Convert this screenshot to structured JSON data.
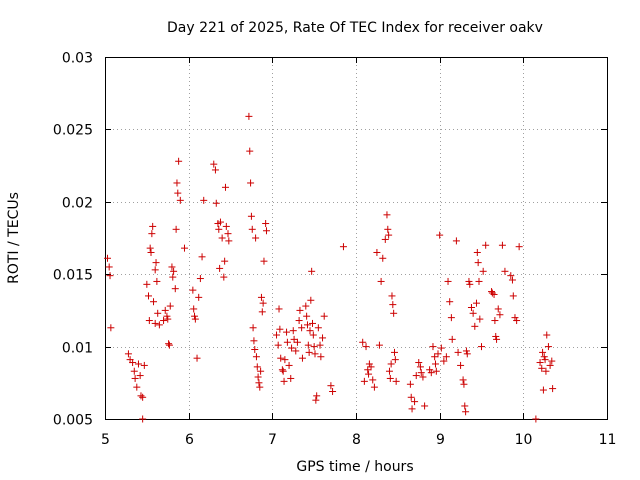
{
  "chart_data": {
    "type": "scatter",
    "title": "Day 221 of 2025, Rate Of TEC Index for receiver oakv",
    "xlabel": "GPS time / hours",
    "ylabel": "ROTI / TECUs",
    "xlim": [
      5,
      11
    ],
    "ylim": [
      0.005,
      0.03
    ],
    "xticks": [
      5,
      6,
      7,
      8,
      9,
      10,
      11
    ],
    "xtick_labels": [
      "5",
      "6",
      "7",
      "8",
      "9",
      "10",
      "11"
    ],
    "yticks": [
      0.005,
      0.01,
      0.015,
      0.02,
      0.025,
      0.03
    ],
    "ytick_labels": [
      "0.005",
      "0.01",
      "0.015",
      "0.02",
      "0.025",
      "0.03"
    ],
    "grid": true,
    "marker": "+",
    "marker_color": "#cc0000",
    "series": [
      {
        "name": "ROTI",
        "points": [
          [
            5.03,
            0.0161
          ],
          [
            5.05,
            0.0155
          ],
          [
            5.06,
            0.0149
          ],
          [
            5.07,
            0.0113
          ],
          [
            5.28,
            0.0095
          ],
          [
            5.3,
            0.0091
          ],
          [
            5.33,
            0.0089
          ],
          [
            5.35,
            0.0083
          ],
          [
            5.36,
            0.0078
          ],
          [
            5.38,
            0.0072
          ],
          [
            5.4,
            0.0088
          ],
          [
            5.42,
            0.008
          ],
          [
            5.43,
            0.0066
          ],
          [
            5.45,
            0.0065
          ],
          [
            5.47,
            0.0087
          ],
          [
            5.45,
            0.005
          ],
          [
            5.5,
            0.0143
          ],
          [
            5.52,
            0.0135
          ],
          [
            5.53,
            0.0118
          ],
          [
            5.54,
            0.0168
          ],
          [
            5.55,
            0.0165
          ],
          [
            5.56,
            0.0178
          ],
          [
            5.57,
            0.0183
          ],
          [
            5.58,
            0.0131
          ],
          [
            5.6,
            0.0153
          ],
          [
            5.61,
            0.0158
          ],
          [
            5.62,
            0.0145
          ],
          [
            5.6,
            0.0116
          ],
          [
            5.63,
            0.0123
          ],
          [
            5.65,
            0.0115
          ],
          [
            5.7,
            0.0118
          ],
          [
            5.72,
            0.0125
          ],
          [
            5.74,
            0.0121
          ],
          [
            5.75,
            0.0119
          ],
          [
            5.76,
            0.0102
          ],
          [
            5.77,
            0.0101
          ],
          [
            5.78,
            0.0128
          ],
          [
            5.8,
            0.0155
          ],
          [
            5.81,
            0.0148
          ],
          [
            5.82,
            0.0152
          ],
          [
            5.84,
            0.014
          ],
          [
            5.85,
            0.0181
          ],
          [
            5.86,
            0.0213
          ],
          [
            5.87,
            0.0206
          ],
          [
            5.88,
            0.0228
          ],
          [
            5.9,
            0.0201
          ],
          [
            5.95,
            0.0168
          ],
          [
            6.05,
            0.0139
          ],
          [
            6.06,
            0.0126
          ],
          [
            6.07,
            0.0121
          ],
          [
            6.08,
            0.0119
          ],
          [
            6.1,
            0.0092
          ],
          [
            6.12,
            0.0134
          ],
          [
            6.14,
            0.0147
          ],
          [
            6.16,
            0.0162
          ],
          [
            6.18,
            0.0201
          ],
          [
            6.3,
            0.0226
          ],
          [
            6.32,
            0.0222
          ],
          [
            6.33,
            0.0199
          ],
          [
            6.35,
            0.0185
          ],
          [
            6.36,
            0.0181
          ],
          [
            6.37,
            0.0154
          ],
          [
            6.38,
            0.0186
          ],
          [
            6.4,
            0.0175
          ],
          [
            6.42,
            0.0148
          ],
          [
            6.43,
            0.0159
          ],
          [
            6.44,
            0.021
          ],
          [
            6.45,
            0.0183
          ],
          [
            6.47,
            0.0178
          ],
          [
            6.48,
            0.0173
          ],
          [
            6.72,
            0.0259
          ],
          [
            6.73,
            0.0235
          ],
          [
            6.74,
            0.0213
          ],
          [
            6.75,
            0.019
          ],
          [
            6.76,
            0.0181
          ],
          [
            6.77,
            0.0113
          ],
          [
            6.78,
            0.0104
          ],
          [
            6.79,
            0.0098
          ],
          [
            6.8,
            0.0175
          ],
          [
            6.81,
            0.0093
          ],
          [
            6.82,
            0.0086
          ],
          [
            6.83,
            0.0079
          ],
          [
            6.84,
            0.0075
          ],
          [
            6.85,
            0.0072
          ],
          [
            6.86,
            0.0083
          ],
          [
            6.87,
            0.0134
          ],
          [
            6.88,
            0.0124
          ],
          [
            6.89,
            0.013
          ],
          [
            6.9,
            0.0159
          ],
          [
            6.92,
            0.0185
          ],
          [
            6.93,
            0.018
          ],
          [
            7.05,
            0.0108
          ],
          [
            7.07,
            0.0101
          ],
          [
            7.08,
            0.0126
          ],
          [
            7.09,
            0.0112
          ],
          [
            7.1,
            0.0092
          ],
          [
            7.12,
            0.0084
          ],
          [
            7.13,
            0.0083
          ],
          [
            7.14,
            0.0076
          ],
          [
            7.15,
            0.0091
          ],
          [
            7.17,
            0.011
          ],
          [
            7.18,
            0.0103
          ],
          [
            7.2,
            0.0087
          ],
          [
            7.22,
            0.0078
          ],
          [
            7.23,
            0.0099
          ],
          [
            7.25,
            0.0111
          ],
          [
            7.26,
            0.0105
          ],
          [
            7.28,
            0.0097
          ],
          [
            7.3,
            0.0103
          ],
          [
            7.32,
            0.0118
          ],
          [
            7.33,
            0.0125
          ],
          [
            7.35,
            0.0113
          ],
          [
            7.36,
            0.0092
          ],
          [
            7.4,
            0.0128
          ],
          [
            7.41,
            0.0121
          ],
          [
            7.42,
            0.0115
          ],
          [
            7.43,
            0.0101
          ],
          [
            7.44,
            0.0096
          ],
          [
            7.45,
            0.0111
          ],
          [
            7.46,
            0.0132
          ],
          [
            7.47,
            0.0152
          ],
          [
            7.48,
            0.0116
          ],
          [
            7.49,
            0.0108
          ],
          [
            7.5,
            0.01
          ],
          [
            7.51,
            0.0095
          ],
          [
            7.52,
            0.0063
          ],
          [
            7.53,
            0.0066
          ],
          [
            7.55,
            0.0113
          ],
          [
            7.57,
            0.0101
          ],
          [
            7.58,
            0.0093
          ],
          [
            7.6,
            0.0106
          ],
          [
            7.62,
            0.0121
          ],
          [
            7.7,
            0.0073
          ],
          [
            7.72,
            0.0069
          ],
          [
            7.85,
            0.0169
          ],
          [
            8.08,
            0.0103
          ],
          [
            8.1,
            0.0076
          ],
          [
            8.12,
            0.01
          ],
          [
            8.14,
            0.0084
          ],
          [
            8.15,
            0.0081
          ],
          [
            8.16,
            0.0088
          ],
          [
            8.18,
            0.0086
          ],
          [
            8.2,
            0.0077
          ],
          [
            8.22,
            0.0072
          ],
          [
            8.25,
            0.0165
          ],
          [
            8.28,
            0.0101
          ],
          [
            8.3,
            0.0145
          ],
          [
            8.32,
            0.0161
          ],
          [
            8.35,
            0.0174
          ],
          [
            8.37,
            0.0191
          ],
          [
            8.38,
            0.0181
          ],
          [
            8.39,
            0.0177
          ],
          [
            8.4,
            0.0083
          ],
          [
            8.41,
            0.0078
          ],
          [
            8.42,
            0.0088
          ],
          [
            8.43,
            0.0135
          ],
          [
            8.44,
            0.0129
          ],
          [
            8.45,
            0.0123
          ],
          [
            8.46,
            0.0096
          ],
          [
            8.47,
            0.0091
          ],
          [
            8.48,
            0.0076
          ],
          [
            8.65,
            0.0074
          ],
          [
            8.66,
            0.0065
          ],
          [
            8.67,
            0.0057
          ],
          [
            8.7,
            0.0062
          ],
          [
            8.72,
            0.008
          ],
          [
            8.75,
            0.0089
          ],
          [
            8.77,
            0.0086
          ],
          [
            8.78,
            0.0082
          ],
          [
            8.8,
            0.0079
          ],
          [
            8.82,
            0.0059
          ],
          [
            8.88,
            0.0084
          ],
          [
            8.9,
            0.0082
          ],
          [
            8.92,
            0.01
          ],
          [
            8.94,
            0.0093
          ],
          [
            8.95,
            0.0088
          ],
          [
            8.96,
            0.0083
          ],
          [
            8.98,
            0.0095
          ],
          [
            9.0,
            0.0177
          ],
          [
            9.02,
            0.0099
          ],
          [
            9.05,
            0.009
          ],
          [
            9.08,
            0.0093
          ],
          [
            9.1,
            0.0145
          ],
          [
            9.12,
            0.0131
          ],
          [
            9.14,
            0.012
          ],
          [
            9.15,
            0.0105
          ],
          [
            9.2,
            0.0173
          ],
          [
            9.22,
            0.0096
          ],
          [
            9.25,
            0.0087
          ],
          [
            9.28,
            0.0077
          ],
          [
            9.29,
            0.0074
          ],
          [
            9.3,
            0.0059
          ],
          [
            9.31,
            0.0055
          ],
          [
            9.32,
            0.0097
          ],
          [
            9.33,
            0.0095
          ],
          [
            9.35,
            0.0145
          ],
          [
            9.36,
            0.0143
          ],
          [
            9.38,
            0.0127
          ],
          [
            9.4,
            0.0123
          ],
          [
            9.42,
            0.0114
          ],
          [
            9.44,
            0.013
          ],
          [
            9.45,
            0.0165
          ],
          [
            9.46,
            0.0158
          ],
          [
            9.47,
            0.0145
          ],
          [
            9.48,
            0.0119
          ],
          [
            9.5,
            0.01
          ],
          [
            9.52,
            0.0152
          ],
          [
            9.55,
            0.017
          ],
          [
            9.62,
            0.0138
          ],
          [
            9.63,
            0.0137
          ],
          [
            9.65,
            0.0136
          ],
          [
            9.66,
            0.0118
          ],
          [
            9.67,
            0.0107
          ],
          [
            9.68,
            0.0105
          ],
          [
            9.7,
            0.0126
          ],
          [
            9.72,
            0.0122
          ],
          [
            9.75,
            0.017
          ],
          [
            9.78,
            0.0152
          ],
          [
            9.85,
            0.0149
          ],
          [
            9.87,
            0.0146
          ],
          [
            9.88,
            0.0135
          ],
          [
            9.9,
            0.012
          ],
          [
            9.92,
            0.0118
          ],
          [
            9.95,
            0.0169
          ],
          [
            10.15,
            0.005
          ],
          [
            10.2,
            0.0089
          ],
          [
            10.22,
            0.0085
          ],
          [
            10.23,
            0.0096
          ],
          [
            10.24,
            0.007
          ],
          [
            10.25,
            0.0093
          ],
          [
            10.26,
            0.0091
          ],
          [
            10.27,
            0.0083
          ],
          [
            10.28,
            0.0108
          ],
          [
            10.3,
            0.01
          ],
          [
            10.32,
            0.0087
          ],
          [
            10.34,
            0.009
          ],
          [
            10.35,
            0.0071
          ]
        ]
      }
    ]
  }
}
